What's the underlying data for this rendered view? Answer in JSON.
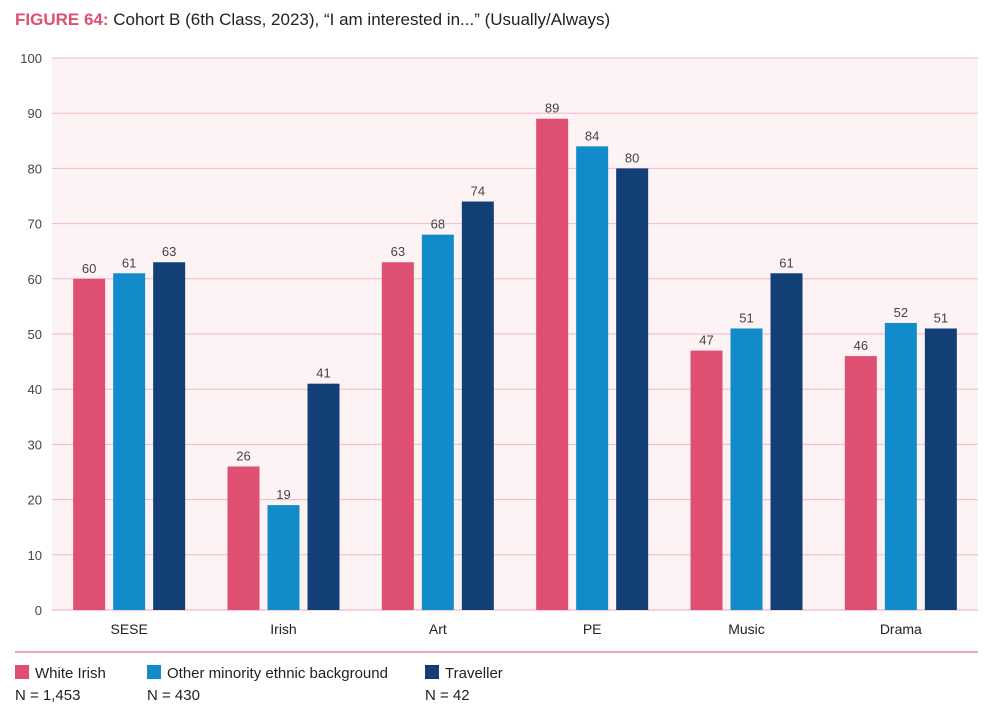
{
  "title": {
    "prefix": "FIGURE 64:",
    "text": "Cohort B (6th Class, 2023), “I am interested in...” (Usually/Always)"
  },
  "chart_data": {
    "type": "bar",
    "categories": [
      "SESE",
      "Irish",
      "Art",
      "PE",
      "Music",
      "Drama"
    ],
    "series": [
      {
        "name": "White Irish",
        "n_label": "N = 1,453",
        "color": "#de4f72",
        "values": [
          60,
          26,
          63,
          89,
          47,
          46
        ]
      },
      {
        "name": "Other minority ethnic background",
        "n_label": "N = 430",
        "color": "#128bcb",
        "values": [
          61,
          19,
          68,
          84,
          51,
          52
        ]
      },
      {
        "name": "Traveller",
        "n_label": "N = 42",
        "color": "#123f76",
        "values": [
          63,
          41,
          74,
          80,
          61,
          51
        ]
      }
    ],
    "ylim": [
      0,
      100
    ],
    "yticks": [
      0,
      10,
      20,
      30,
      40,
      50,
      60,
      70,
      80,
      90,
      100
    ],
    "grid": true,
    "legend": "bottom-left",
    "background": "#fdf3f5",
    "grid_color": "#f0b9c6"
  }
}
